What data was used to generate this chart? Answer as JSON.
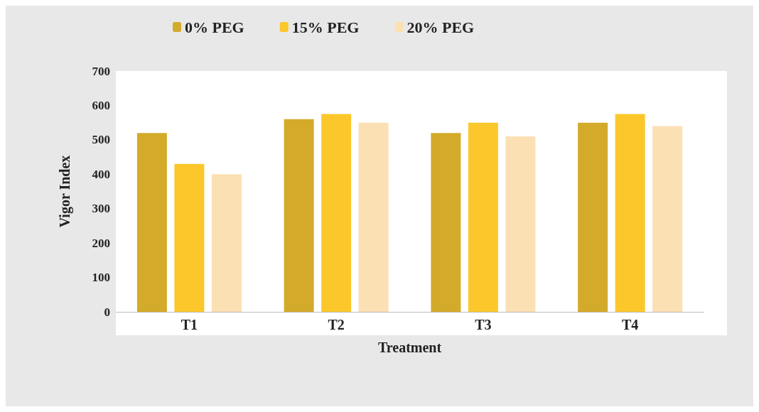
{
  "chart_data": {
    "type": "bar",
    "xlabel": "Treatment",
    "ylabel": "Vigor Index",
    "categories": [
      "T1",
      "T2",
      "T3",
      "T4"
    ],
    "series": [
      {
        "name": "0% PEG",
        "color": "#d4aa2a",
        "values": [
          520,
          560,
          520,
          550
        ]
      },
      {
        "name": "15% PEG",
        "color": "#fcc72a",
        "values": [
          430,
          575,
          550,
          575
        ]
      },
      {
        "name": "20% PEG",
        "color": "#fbe0b4",
        "values": [
          400,
          550,
          510,
          540
        ]
      }
    ],
    "ylim": [
      0,
      700
    ],
    "yticks": [
      0,
      100,
      200,
      300,
      400,
      500,
      600,
      700
    ],
    "grid": false,
    "legend": "top"
  }
}
